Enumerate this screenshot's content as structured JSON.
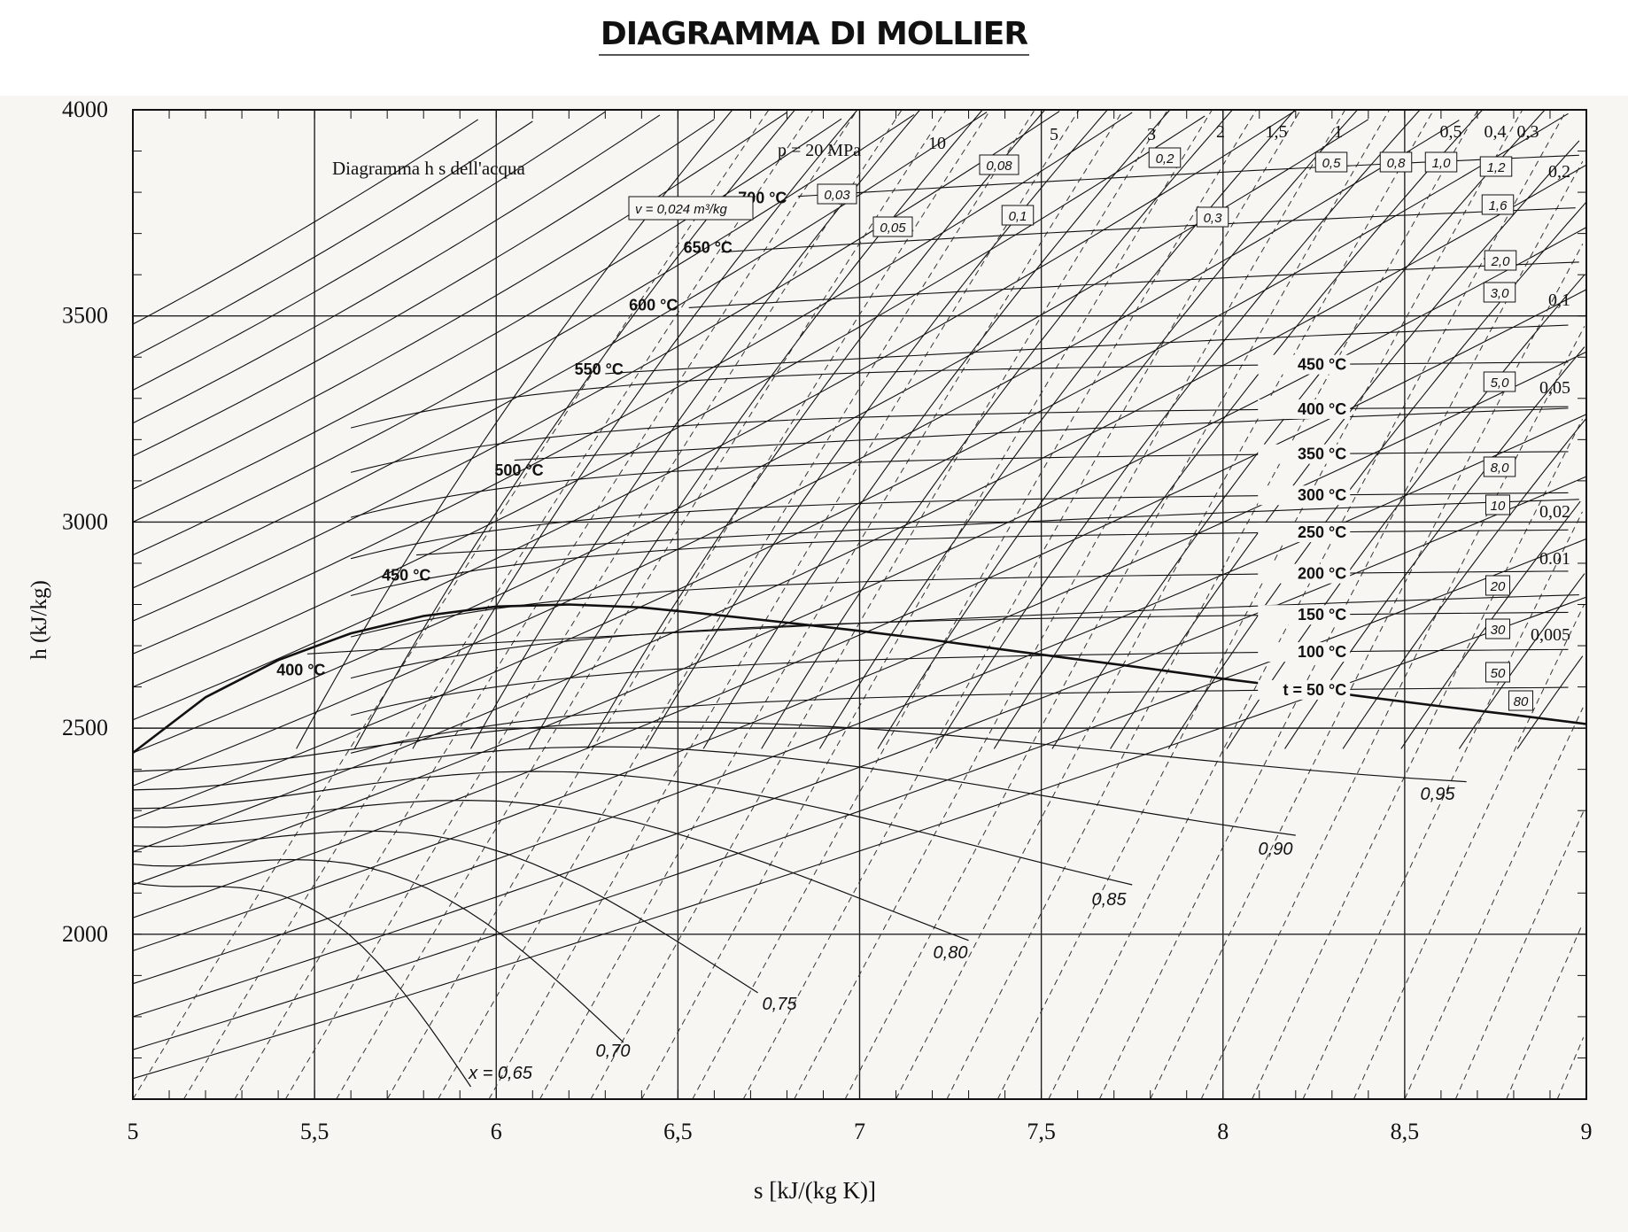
{
  "page_title": "DIAGRAMMA DI MOLLIER",
  "chart_data": {
    "type": "line",
    "title": "Diagramma h s dell'acqua",
    "xlabel": "s  [kJ/(kg K)]",
    "ylabel": "h  (kJ/kg)",
    "xlim": [
      5,
      9
    ],
    "ylim": [
      1600,
      4000
    ],
    "x_ticks": [
      5,
      5.5,
      6,
      6.5,
      7,
      7.5,
      8,
      8.5,
      9
    ],
    "x_tick_labels": [
      "5",
      "5,5",
      "6",
      "6,5",
      "7",
      "7,5",
      "8",
      "8,5",
      "9"
    ],
    "y_ticks": [
      2000,
      2500,
      3000,
      3500,
      4000
    ],
    "y_tick_labels": [
      "2000",
      "2500",
      "3000",
      "3500",
      "4000"
    ],
    "grid": true,
    "saturation_curve": {
      "s": [
        5.0,
        5.2,
        5.4,
        5.6,
        5.8,
        6.0,
        6.2,
        6.4,
        6.6,
        6.8,
        7.0,
        7.2,
        7.4,
        7.6,
        7.8,
        8.0,
        8.2,
        8.4,
        8.6,
        8.8,
        9.0
      ],
      "h": [
        2440,
        2575,
        2665,
        2730,
        2772,
        2795,
        2800,
        2793,
        2775,
        2756,
        2736,
        2714,
        2690,
        2667,
        2644,
        2620,
        2598,
        2575,
        2553,
        2532,
        2510
      ]
    },
    "temperature_labels": [
      "400 °C",
      "450 °C",
      "500 °C",
      "550 °C",
      "600 °C",
      "650 °C",
      "700 °C",
      "450 °C",
      "400 °C",
      "350 °C",
      "300 °C",
      "250 °C",
      "200 °C",
      "150 °C",
      "100 °C",
      "t = 50 °C"
    ],
    "isotherms_right": [
      {
        "label": "450 °C",
        "h": 3384
      },
      {
        "label": "400 °C",
        "h": 3276
      },
      {
        "label": "350 °C",
        "h": 3167
      },
      {
        "label": "300 °C",
        "h": 3067
      },
      {
        "label": "250 °C",
        "h": 2977
      },
      {
        "label": "200 °C",
        "h": 2877
      },
      {
        "label": "150 °C",
        "h": 2777
      },
      {
        "label": "100 °C",
        "h": 2687
      },
      {
        "label": "t = 50 °C",
        "h": 2595
      }
    ],
    "isotherms_left": [
      {
        "label": "400 °C",
        "s": 5.48,
        "h": 2680
      },
      {
        "label": "450 °C",
        "s": 5.78,
        "h": 2920
      },
      {
        "label": "500 °C",
        "s": 6.05,
        "h": 3150
      },
      {
        "label": "550 °C",
        "s": 6.3,
        "h": 3360
      },
      {
        "label": "600 °C",
        "s": 6.53,
        "h": 3520
      },
      {
        "label": "650 °C",
        "s": 6.62,
        "h": 3655
      },
      {
        "label": "700 °C",
        "s": 6.83,
        "h": 3790
      }
    ],
    "pressure_label_prefix": "p = 20 MPa",
    "pressure_labels": [
      "10",
      "5",
      "3",
      "2",
      "1,5",
      "1",
      "0,5",
      "0,4",
      "0,3",
      "0,2",
      "0,1",
      "0,05",
      "0,02",
      "0.01",
      "0,005"
    ],
    "volume_label_prefix": "v = 0,024 m³/kg",
    "volume_labels": [
      "0,03",
      "0,05",
      "0,08",
      "0,1",
      "0,2",
      "0,3",
      "0,5",
      "0,8",
      "1,0",
      "1,2",
      "1,6",
      "2,0",
      "3,0",
      "5,0",
      "8,0",
      "10",
      "20",
      "30",
      "50",
      "80"
    ],
    "quality_labels": [
      "x = 0,65",
      "0,70",
      "0,75",
      "0,80",
      "0,85",
      "0,90",
      "0,95"
    ],
    "quality_lines": [
      {
        "label": "x = 0,65",
        "x": 0.65
      },
      {
        "label": "0,70",
        "x": 0.7
      },
      {
        "label": "0,75",
        "x": 0.75
      },
      {
        "label": "0,80",
        "x": 0.8
      },
      {
        "label": "0,85",
        "x": 0.85
      },
      {
        "label": "0,90",
        "x": 0.9
      },
      {
        "label": "0,95",
        "x": 0.95
      }
    ]
  }
}
